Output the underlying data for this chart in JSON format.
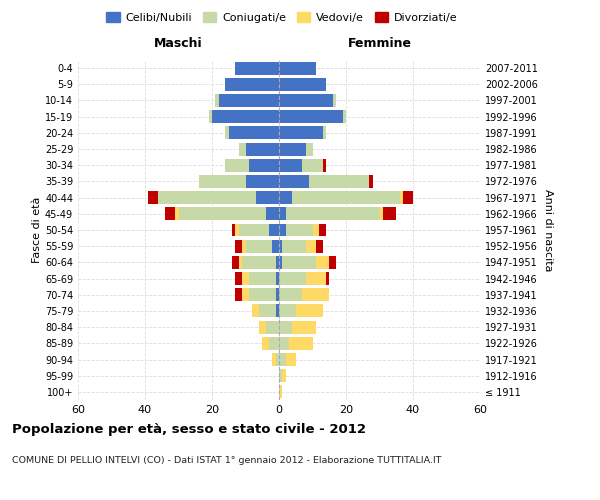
{
  "age_groups": [
    "100+",
    "95-99",
    "90-94",
    "85-89",
    "80-84",
    "75-79",
    "70-74",
    "65-69",
    "60-64",
    "55-59",
    "50-54",
    "45-49",
    "40-44",
    "35-39",
    "30-34",
    "25-29",
    "20-24",
    "15-19",
    "10-14",
    "5-9",
    "0-4"
  ],
  "birth_years": [
    "≤ 1911",
    "1912-1916",
    "1917-1921",
    "1922-1926",
    "1927-1931",
    "1932-1936",
    "1937-1941",
    "1942-1946",
    "1947-1951",
    "1952-1956",
    "1957-1961",
    "1962-1966",
    "1967-1971",
    "1972-1976",
    "1977-1981",
    "1982-1986",
    "1987-1991",
    "1992-1996",
    "1997-2001",
    "2002-2006",
    "2007-2011"
  ],
  "colors": {
    "celibe": "#4472C4",
    "coniugato": "#c8d9a8",
    "vedovo": "#FFD966",
    "divorziato": "#C00000"
  },
  "male": {
    "celibe": [
      0,
      0,
      0,
      0,
      0,
      1,
      1,
      1,
      1,
      2,
      3,
      4,
      7,
      10,
      9,
      10,
      15,
      20,
      18,
      16,
      13
    ],
    "coniugato": [
      0,
      0,
      1,
      3,
      4,
      5,
      8,
      8,
      10,
      8,
      9,
      26,
      29,
      14,
      7,
      2,
      1,
      1,
      1,
      0,
      0
    ],
    "vedovo": [
      0,
      0,
      1,
      2,
      2,
      2,
      2,
      2,
      1,
      1,
      1,
      1,
      0,
      0,
      0,
      0,
      0,
      0,
      0,
      0,
      0
    ],
    "divorziato": [
      0,
      0,
      0,
      0,
      0,
      0,
      2,
      2,
      2,
      2,
      1,
      3,
      3,
      0,
      0,
      0,
      0,
      0,
      0,
      0,
      0
    ]
  },
  "female": {
    "nubile": [
      0,
      0,
      0,
      0,
      0,
      0,
      0,
      0,
      1,
      1,
      2,
      2,
      4,
      9,
      7,
      8,
      13,
      19,
      16,
      14,
      11
    ],
    "coniugata": [
      0,
      1,
      2,
      3,
      4,
      5,
      7,
      8,
      10,
      7,
      8,
      28,
      32,
      18,
      6,
      2,
      1,
      1,
      1,
      0,
      0
    ],
    "vedova": [
      1,
      1,
      3,
      7,
      7,
      8,
      8,
      6,
      4,
      3,
      2,
      1,
      1,
      0,
      0,
      0,
      0,
      0,
      0,
      0,
      0
    ],
    "divorziata": [
      0,
      0,
      0,
      0,
      0,
      0,
      0,
      1,
      2,
      2,
      2,
      4,
      3,
      1,
      1,
      0,
      0,
      0,
      0,
      0,
      0
    ]
  },
  "title": "Popolazione per età, sesso e stato civile - 2012",
  "subtitle": "COMUNE DI PELLIO INTELVI (CO) - Dati ISTAT 1° gennaio 2012 - Elaborazione TUTTITALIA.IT",
  "xlabel_left": "Maschi",
  "xlabel_right": "Femmine",
  "ylabel_left": "Fasce di età",
  "ylabel_right": "Anni di nascita",
  "xlim": 60,
  "legend_labels": [
    "Celibi/Nubili",
    "Coniugati/e",
    "Vedovi/e",
    "Divorziati/e"
  ],
  "background_color": "#ffffff",
  "grid_color": "#dddddd"
}
